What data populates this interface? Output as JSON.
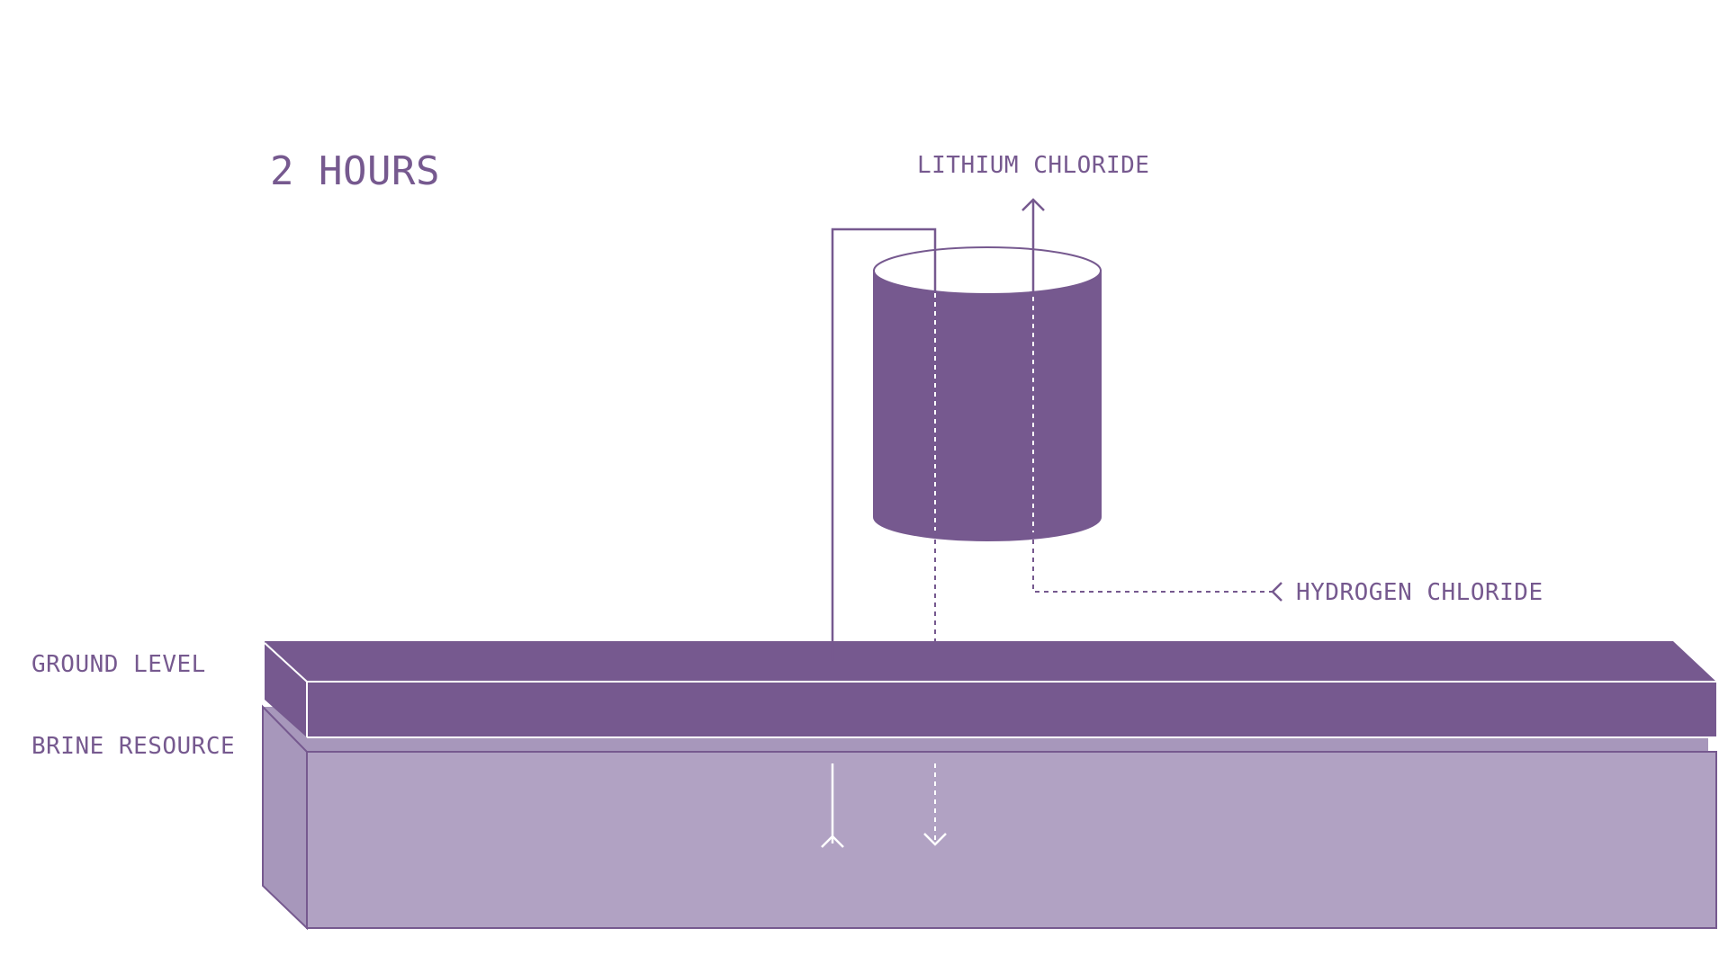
{
  "title": "2 HOURS",
  "labels": {
    "output_top": "LITHIUM CHLORIDE",
    "input_right": "HYDROGEN CHLORIDE",
    "ground": "GROUND LEVEL",
    "brine": "BRINE RESOURCE"
  },
  "colors": {
    "primary": "#76598f",
    "brine_fill": "#b1a2c3",
    "brine_side": "#a797bb",
    "line_on_fill": "#ffffff"
  }
}
